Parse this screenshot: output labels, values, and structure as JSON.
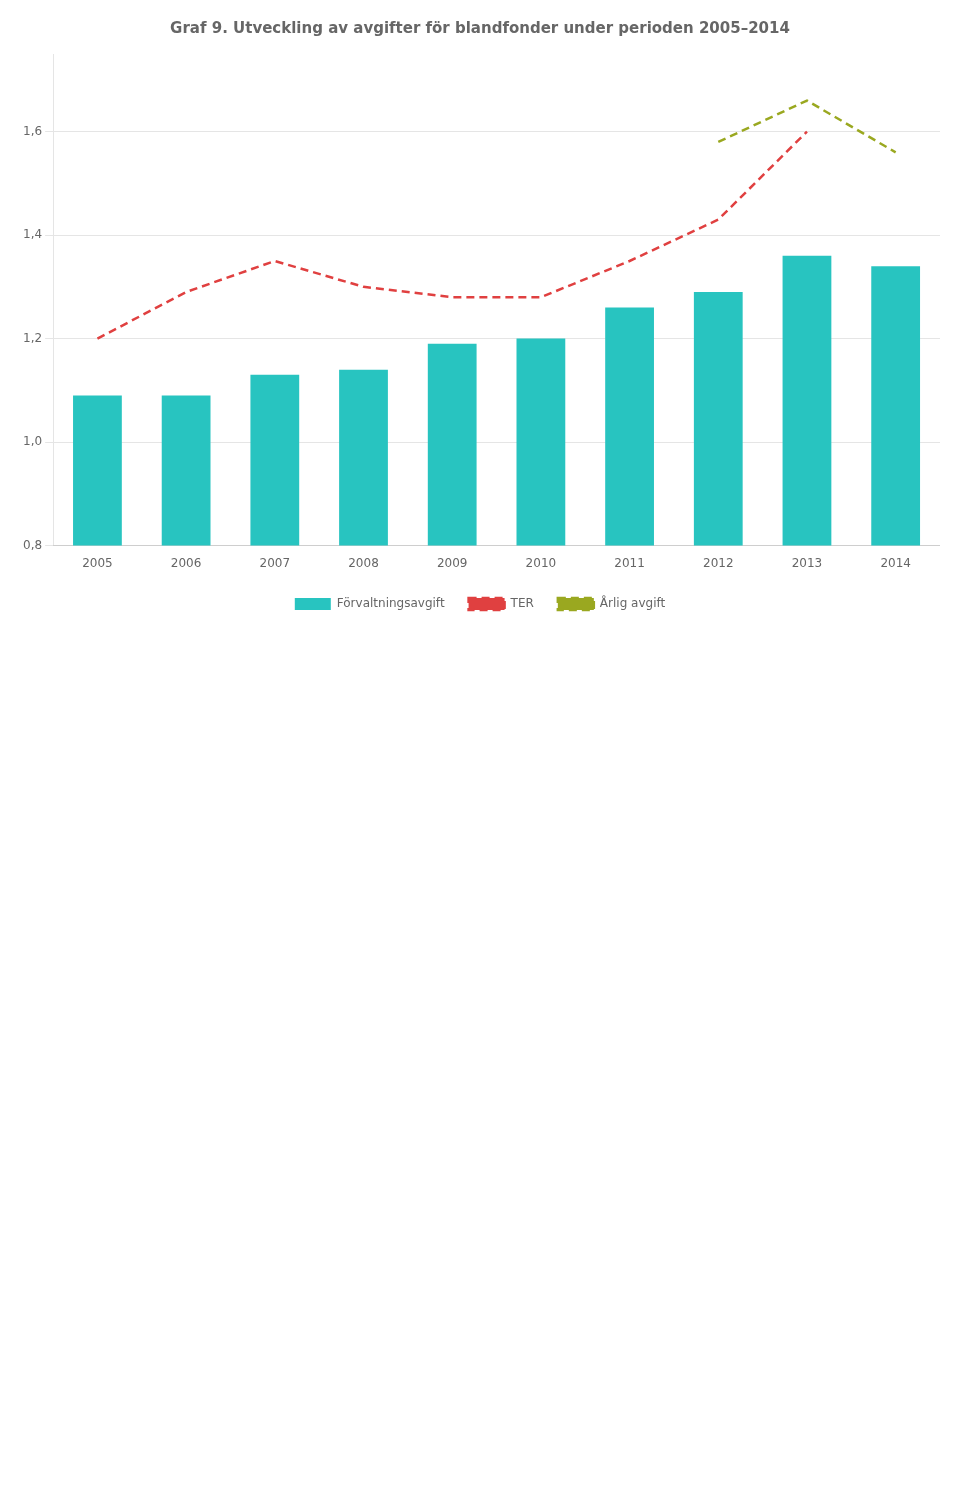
{
  "chart_data": {
    "type": "bar",
    "title": "Graf 9. Utveckling av avgifter för blandfonder under perioden 2005–2014",
    "categories": [
      "2005",
      "2006",
      "2007",
      "2008",
      "2009",
      "2010",
      "2011",
      "2012",
      "2013",
      "2014"
    ],
    "series": [
      {
        "name": "Förvaltningsavgift",
        "type": "bar",
        "color": "#28C4C0",
        "values": [
          1.09,
          1.09,
          1.13,
          1.14,
          1.19,
          1.2,
          1.26,
          1.29,
          1.36,
          1.34
        ]
      },
      {
        "name": "TER",
        "type": "line",
        "color": "#E04040",
        "line_style": "dashed",
        "marker": "none",
        "values": [
          1.2,
          1.29,
          1.35,
          1.3,
          1.28,
          1.28,
          1.35,
          1.43,
          1.6,
          null
        ]
      },
      {
        "name": "Årlig avgift",
        "type": "line",
        "color": "#9AA820",
        "line_style": "dashed",
        "marker": "none",
        "values": [
          null,
          null,
          null,
          null,
          null,
          null,
          null,
          1.58,
          1.66,
          1.56
        ]
      }
    ],
    "ylim": [
      0.8,
      1.75
    ],
    "yticks": [
      {
        "value": 0.8,
        "label": "0,8"
      },
      {
        "value": 1.0,
        "label": "1,0"
      },
      {
        "value": 1.2,
        "label": "1,2"
      },
      {
        "value": 1.4,
        "label": "1,4"
      },
      {
        "value": 1.6,
        "label": "1,6"
      }
    ],
    "grid": true,
    "legend": "bottom"
  }
}
